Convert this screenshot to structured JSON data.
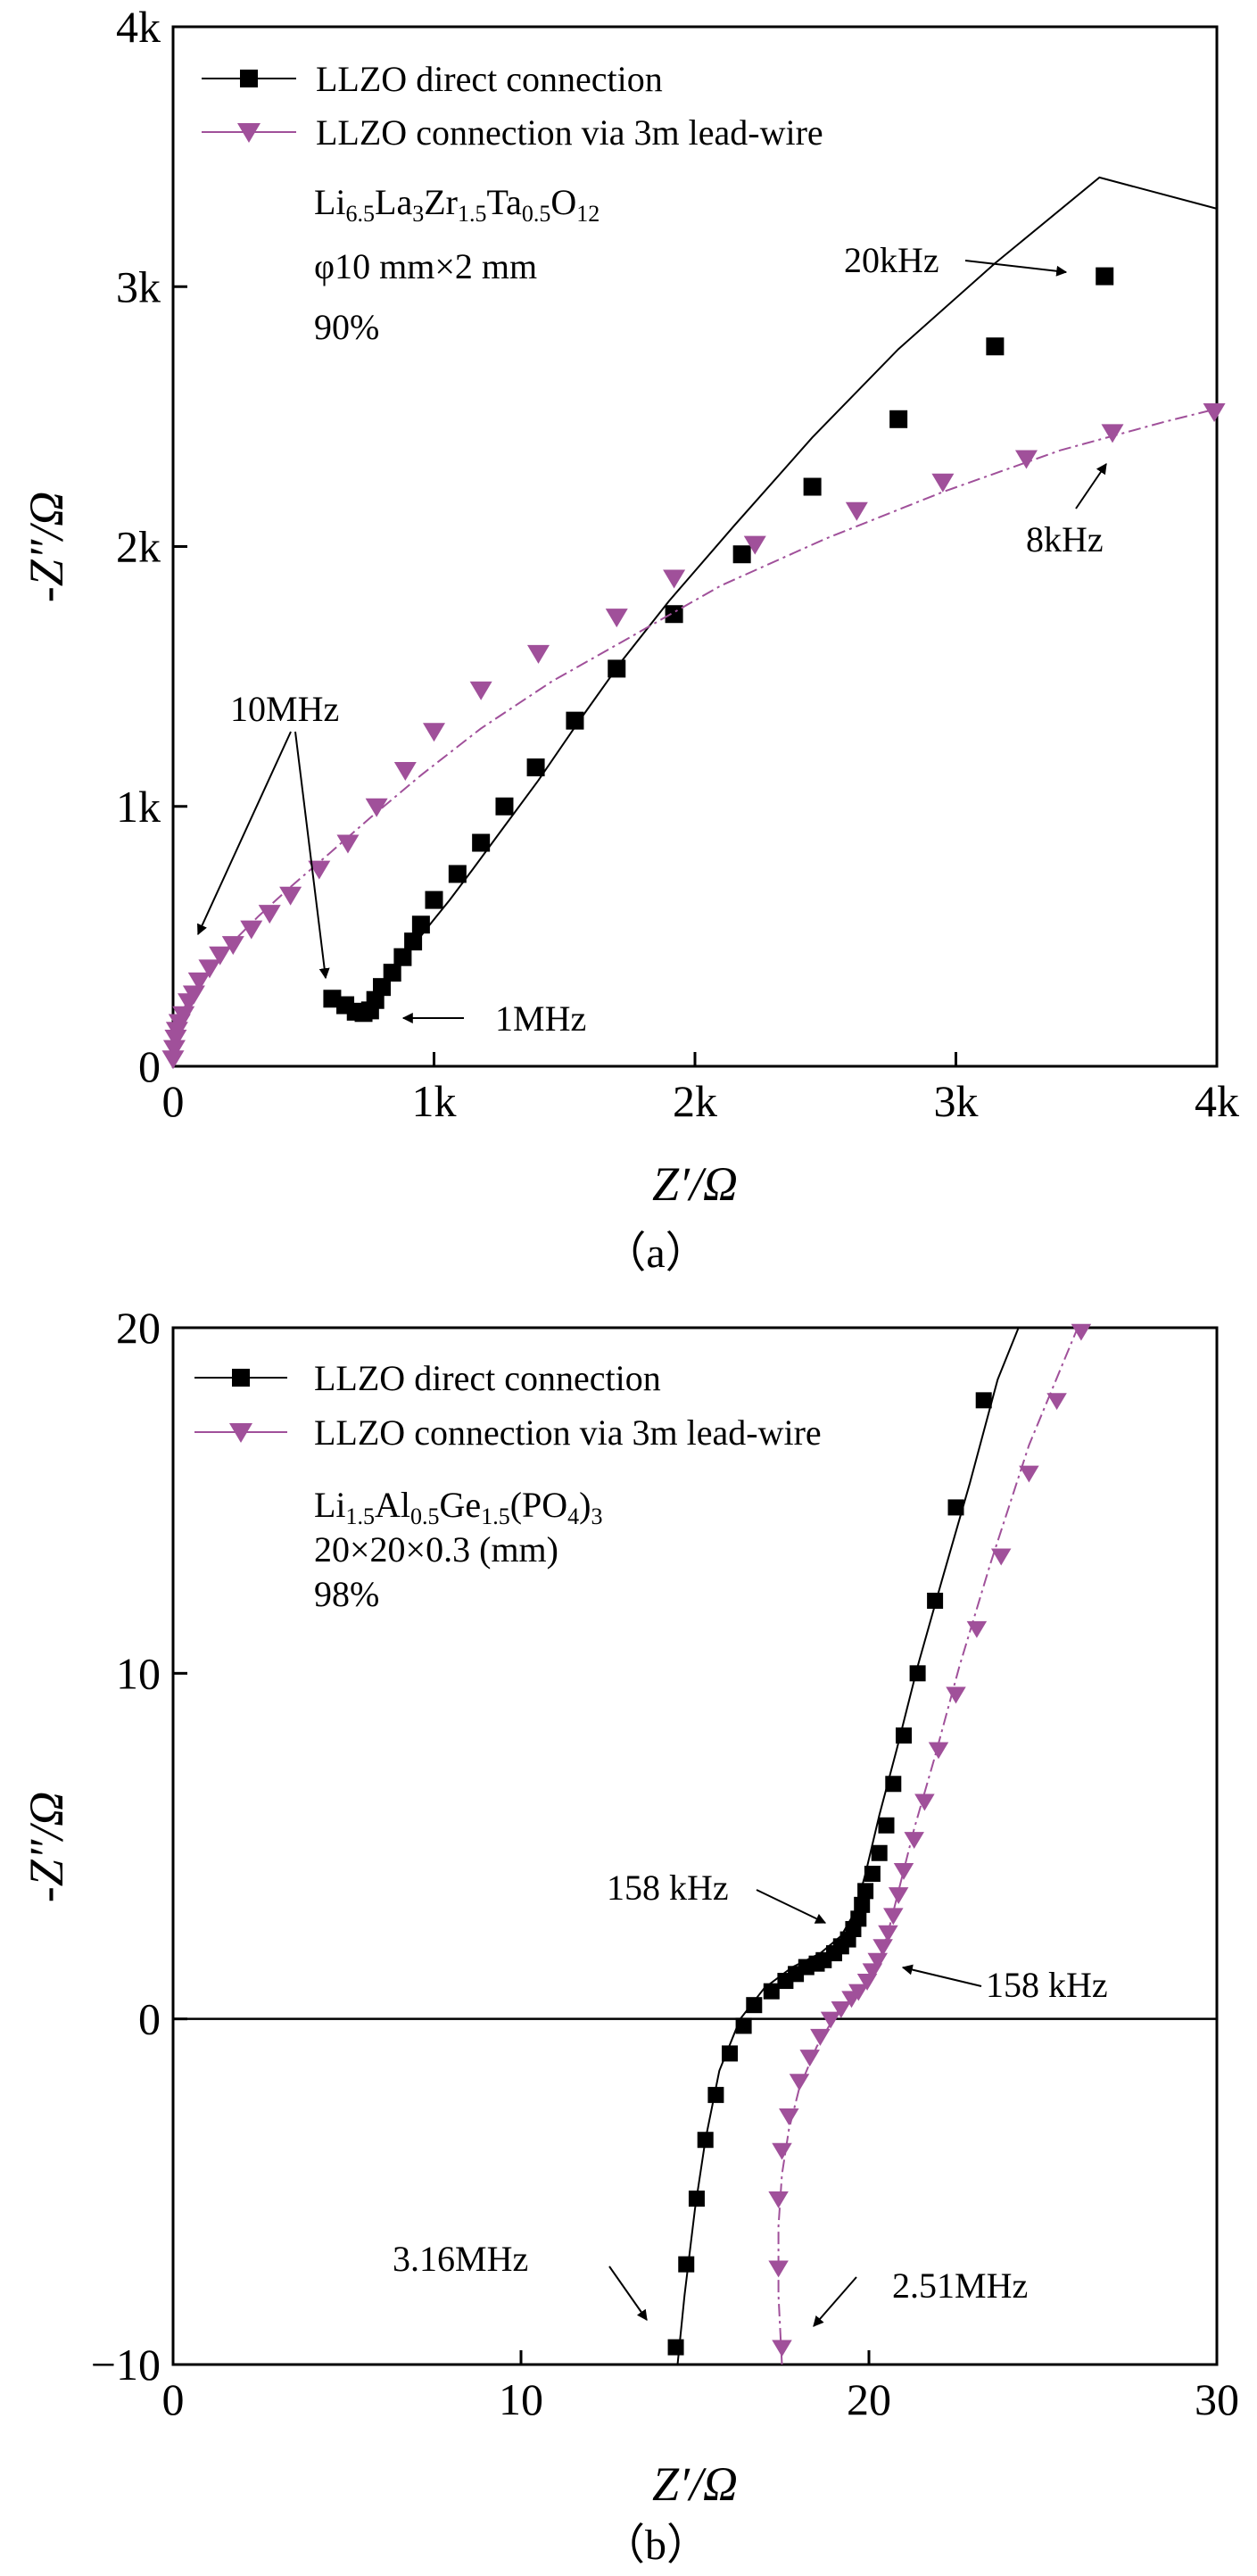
{
  "chart_data": [
    {
      "id": "a",
      "type": "scatter",
      "caption": "（a）",
      "xlabel": "Z′/Ω",
      "ylabel": "-Z″/Ω",
      "xlim": [
        0,
        4000
      ],
      "ylim": [
        0,
        4000
      ],
      "xticks": [
        {
          "value": 0,
          "label": "0"
        },
        {
          "value": 1000,
          "label": "1k"
        },
        {
          "value": 2000,
          "label": "2k"
        },
        {
          "value": 3000,
          "label": "3k"
        },
        {
          "value": 4000,
          "label": "4k"
        }
      ],
      "yticks": [
        {
          "value": 0,
          "label": "0"
        },
        {
          "value": 1000,
          "label": "1k"
        },
        {
          "value": 2000,
          "label": "2k"
        },
        {
          "value": 3000,
          "label": "3k"
        },
        {
          "value": 4000,
          "label": "4k"
        }
      ],
      "legend_position": "top-left",
      "info": [
        "Li6.5La3Zr1.5Ta0.5O12",
        "φ10 mm×2 mm",
        "90%"
      ],
      "series": [
        {
          "name": "LLZO direct connection",
          "color": "#000000",
          "marker": "square",
          "line": [
            [
              610,
              260
            ],
            [
              650,
              240
            ],
            [
              690,
              215
            ],
            [
              720,
              205
            ],
            [
              745,
              215
            ],
            [
              770,
              245
            ],
            [
              800,
              300
            ],
            [
              850,
              370
            ],
            [
              910,
              450
            ],
            [
              980,
              540
            ],
            [
              1060,
              640
            ],
            [
              1150,
              760
            ],
            [
              1260,
              910
            ],
            [
              1400,
              1100
            ],
            [
              1550,
              1320
            ],
            [
              1720,
              1560
            ],
            [
              1900,
              1790
            ],
            [
              2150,
              2080
            ],
            [
              2450,
              2420
            ],
            [
              2780,
              2760
            ],
            [
              3150,
              3090
            ],
            [
              3550,
              3420
            ],
            [
              4000,
              3300
            ]
          ],
          "points": [
            [
              610,
              260
            ],
            [
              660,
              235
            ],
            [
              700,
              210
            ],
            [
              730,
              205
            ],
            [
              755,
              215
            ],
            [
              775,
              255
            ],
            [
              800,
              305
            ],
            [
              840,
              360
            ],
            [
              880,
              420
            ],
            [
              920,
              480
            ],
            [
              950,
              545
            ],
            [
              1000,
              640
            ],
            [
              1090,
              740
            ],
            [
              1180,
              860
            ],
            [
              1270,
              1000
            ],
            [
              1390,
              1150
            ],
            [
              1540,
              1330
            ],
            [
              1700,
              1530
            ],
            [
              1920,
              1740
            ],
            [
              2180,
              1970
            ],
            [
              2450,
              2230
            ],
            [
              2780,
              2490
            ],
            [
              3150,
              2770
            ],
            [
              3570,
              3040
            ]
          ]
        },
        {
          "name": "LLZO connection via 3m lead-wire",
          "color": "#a0509a",
          "marker": "triangle-down",
          "line": [
            [
              0,
              20
            ],
            [
              10,
              120
            ],
            [
              30,
              200
            ],
            [
              60,
              260
            ],
            [
              100,
              320
            ],
            [
              150,
              390
            ],
            [
              230,
              480
            ],
            [
              330,
              580
            ],
            [
              450,
              690
            ],
            [
              600,
              820
            ],
            [
              760,
              960
            ],
            [
              950,
              1120
            ],
            [
              1180,
              1300
            ],
            [
              1450,
              1480
            ],
            [
              1750,
              1650
            ],
            [
              2100,
              1850
            ],
            [
              2500,
              2030
            ],
            [
              2950,
              2210
            ],
            [
              3400,
              2370
            ],
            [
              3800,
              2480
            ],
            [
              4000,
              2530
            ]
          ],
          "points": [
            [
              0,
              30
            ],
            [
              5,
              70
            ],
            [
              10,
              110
            ],
            [
              15,
              140
            ],
            [
              25,
              170
            ],
            [
              40,
              200
            ],
            [
              60,
              250
            ],
            [
              80,
              280
            ],
            [
              100,
              330
            ],
            [
              140,
              380
            ],
            [
              180,
              430
            ],
            [
              230,
              470
            ],
            [
              300,
              530
            ],
            [
              370,
              590
            ],
            [
              450,
              660
            ],
            [
              560,
              760
            ],
            [
              670,
              860
            ],
            [
              780,
              1000
            ],
            [
              890,
              1140
            ],
            [
              1000,
              1290
            ],
            [
              1180,
              1450
            ],
            [
              1400,
              1590
            ],
            [
              1700,
              1730
            ],
            [
              1920,
              1880
            ],
            [
              2230,
              2010
            ],
            [
              2620,
              2140
            ],
            [
              2950,
              2250
            ],
            [
              3270,
              2340
            ],
            [
              3600,
              2440
            ],
            [
              3990,
              2520
            ]
          ]
        }
      ],
      "annotations": [
        {
          "text": "10MHz"
        },
        {
          "text": "1MHz"
        },
        {
          "text": "20kHz"
        },
        {
          "text": "8kHz"
        }
      ]
    },
    {
      "id": "b",
      "type": "scatter",
      "caption": "（b）",
      "xlabel": "Z′/Ω",
      "ylabel": "-Z″/Ω",
      "xlim": [
        0,
        30
      ],
      "ylim": [
        -10,
        20
      ],
      "xticks": [
        {
          "value": 0,
          "label": "0"
        },
        {
          "value": 10,
          "label": "10"
        },
        {
          "value": 20,
          "label": "20"
        },
        {
          "value": 30,
          "label": "30"
        }
      ],
      "yticks": [
        {
          "value": -10,
          "label": "−10"
        },
        {
          "value": 0,
          "label": "0"
        },
        {
          "value": 10,
          "label": "10"
        },
        {
          "value": 20,
          "label": "20"
        }
      ],
      "zero_line": true,
      "legend_position": "top-left",
      "info": [
        "Li1.5Al0.5Ge1.5(PO4)3",
        "20×20×0.3 (mm)",
        "98%"
      ],
      "series": [
        {
          "name": "LLZO direct connection",
          "color": "#000000",
          "marker": "square",
          "line": [
            [
              14.5,
              -10
            ],
            [
              14.7,
              -8
            ],
            [
              15.0,
              -5.5
            ],
            [
              15.3,
              -3.5
            ],
            [
              15.7,
              -1.5
            ],
            [
              16.3,
              0
            ],
            [
              17.0,
              0.9
            ],
            [
              17.8,
              1.5
            ],
            [
              18.6,
              1.9
            ],
            [
              19.2,
              2.4
            ],
            [
              19.6,
              3.1
            ],
            [
              19.9,
              4.2
            ],
            [
              20.3,
              5.9
            ],
            [
              20.8,
              7.8
            ],
            [
              21.4,
              10.2
            ],
            [
              22.1,
              12.7
            ],
            [
              22.9,
              15.5
            ],
            [
              23.7,
              18.5
            ],
            [
              24.3,
              20
            ]
          ],
          "points": [
            [
              14.45,
              -9.5
            ],
            [
              14.75,
              -7.1
            ],
            [
              15.05,
              -5.2
            ],
            [
              15.3,
              -3.5
            ],
            [
              15.6,
              -2.2
            ],
            [
              16.0,
              -1.0
            ],
            [
              16.4,
              -0.2
            ],
            [
              16.7,
              0.4
            ],
            [
              17.2,
              0.8
            ],
            [
              17.6,
              1.1
            ],
            [
              17.9,
              1.3
            ],
            [
              18.2,
              1.5
            ],
            [
              18.5,
              1.6
            ],
            [
              18.7,
              1.7
            ],
            [
              19.0,
              1.9
            ],
            [
              19.2,
              2.1
            ],
            [
              19.4,
              2.3
            ],
            [
              19.55,
              2.6
            ],
            [
              19.7,
              2.9
            ],
            [
              19.8,
              3.3
            ],
            [
              19.9,
              3.7
            ],
            [
              20.1,
              4.2
            ],
            [
              20.3,
              4.8
            ],
            [
              20.5,
              5.6
            ],
            [
              20.7,
              6.8
            ],
            [
              21.0,
              8.2
            ],
            [
              21.4,
              10.0
            ],
            [
              21.9,
              12.1
            ],
            [
              22.5,
              14.8
            ],
            [
              23.3,
              17.9
            ]
          ]
        },
        {
          "name": "LLZO connection via 3m lead-wire",
          "color": "#a0509a",
          "marker": "triangle-down",
          "line": [
            [
              17.5,
              -10
            ],
            [
              17.4,
              -8
            ],
            [
              17.4,
              -6
            ],
            [
              17.5,
              -4.5
            ],
            [
              17.7,
              -3.2
            ],
            [
              18.0,
              -2.0
            ],
            [
              18.5,
              -0.8
            ],
            [
              19.1,
              0.2
            ],
            [
              19.8,
              0.9
            ],
            [
              20.3,
              1.7
            ],
            [
              20.6,
              2.7
            ],
            [
              20.9,
              3.9
            ],
            [
              21.3,
              5.5
            ],
            [
              21.9,
              7.6
            ],
            [
              22.6,
              10.2
            ],
            [
              23.5,
              13.2
            ],
            [
              24.6,
              16.6
            ],
            [
              26.0,
              20
            ]
          ],
          "points": [
            [
              17.5,
              -9.5
            ],
            [
              17.4,
              -7.2
            ],
            [
              17.4,
              -5.2
            ],
            [
              17.5,
              -3.8
            ],
            [
              17.7,
              -2.8
            ],
            [
              18.0,
              -1.8
            ],
            [
              18.3,
              -1.1
            ],
            [
              18.6,
              -0.5
            ],
            [
              18.9,
              0.0
            ],
            [
              19.2,
              0.3
            ],
            [
              19.5,
              0.6
            ],
            [
              19.7,
              0.8
            ],
            [
              19.95,
              1.1
            ],
            [
              20.1,
              1.4
            ],
            [
              20.25,
              1.7
            ],
            [
              20.4,
              2.1
            ],
            [
              20.55,
              2.5
            ],
            [
              20.7,
              3.0
            ],
            [
              20.85,
              3.6
            ],
            [
              21.0,
              4.3
            ],
            [
              21.3,
              5.2
            ],
            [
              21.6,
              6.3
            ],
            [
              22.0,
              7.8
            ],
            [
              22.5,
              9.4
            ],
            [
              23.1,
              11.3
            ],
            [
              23.8,
              13.4
            ],
            [
              24.6,
              15.8
            ],
            [
              25.4,
              17.9
            ],
            [
              26.1,
              19.9
            ]
          ]
        }
      ],
      "annotations": [
        {
          "text": "158 kHz"
        },
        {
          "text": "158 kHz"
        },
        {
          "text": "3.16MHz"
        },
        {
          "text": "2.51MHz"
        }
      ]
    }
  ]
}
